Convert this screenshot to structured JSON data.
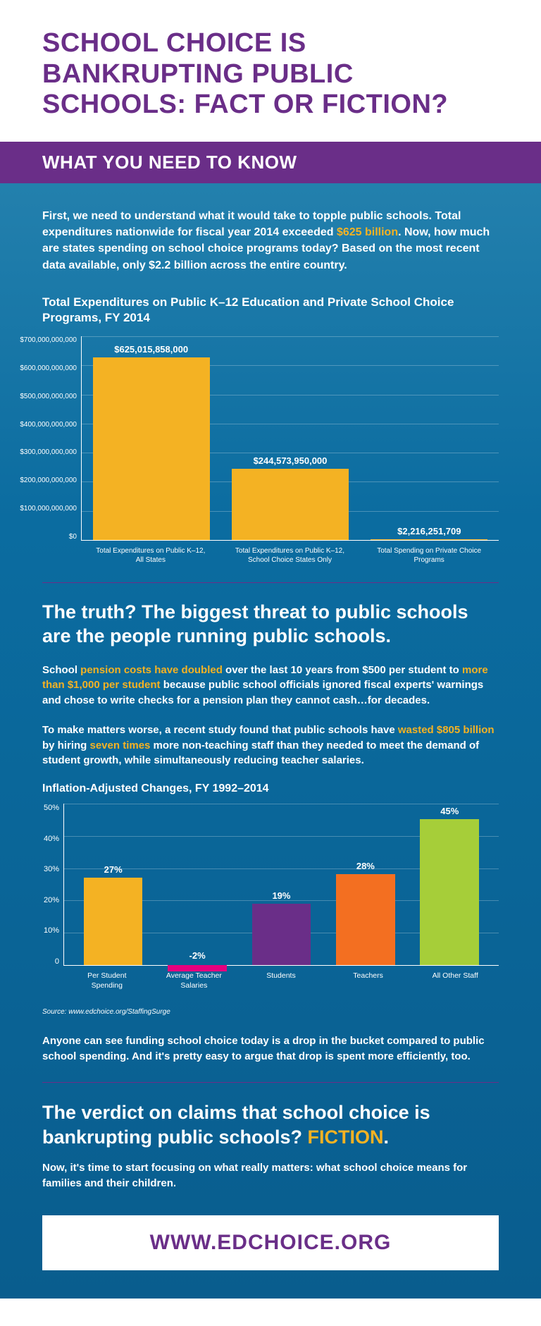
{
  "title": "SCHOOL CHOICE IS BANKRUPTING PUBLIC SCHOOLS: FACT OR FICTION?",
  "subtitle": "WHAT YOU NEED TO KNOW",
  "colors": {
    "purple": "#6a2e88",
    "blue_top": "#2380ad",
    "blue_bottom": "#095d8e",
    "yellow": "#f4b223",
    "magenta": "#e6007e",
    "bar_purple": "#6a2e88",
    "orange": "#f36f21",
    "green": "#a6ce39"
  },
  "intro": {
    "p1a": "First, we need to understand what it would take to topple public schools. Total expenditures nationwide for fiscal year 2014 exceeded ",
    "p1hl": "$625 billion",
    "p1b": ". Now, how much are states spending on school choice programs today? Based on the most recent data available, only $2.2 billion across the entire country."
  },
  "chart1": {
    "title": "Total Expenditures on Public K–12 Education and Private School Choice Programs, FY 2014",
    "ylim": 700000000000,
    "yticks": [
      "$700,000,000,000",
      "$600,000,000,000",
      "$500,000,000,000",
      "$400,000,000,000",
      "$300,000,000,000",
      "$200,000,000,000",
      "$100,000,000,000",
      "$0"
    ],
    "bars": [
      {
        "label": "Total Expenditures on Public K–12, All States",
        "value_label": "$625,015,858,000",
        "value": 625015858000,
        "color": "#f4b223"
      },
      {
        "label": "Total Expenditures on Public K–12, School Choice States Only",
        "value_label": "$244,573,950,000",
        "value": 244573950000,
        "color": "#f4b223"
      },
      {
        "label": "Total Spending on Private Choice Programs",
        "value_label": "$2,216,251,709",
        "value": 2216251709,
        "color": "#f4b223"
      }
    ]
  },
  "section2": {
    "heading": "The truth? The biggest threat to public schools are the people running public schools.",
    "p1a": "School ",
    "p1hl1": "pension costs have doubled",
    "p1b": " over the last 10 years from $500 per student to ",
    "p1hl2": "more than $1,000 per student",
    "p1c": " because public school officials ignored fiscal experts' warnings and chose to write checks for a pension plan they cannot cash…for decades.",
    "p2a": "To make matters worse, a recent study found that public schools have ",
    "p2hl1": "wasted $805 billion",
    "p2b": " by hiring ",
    "p2hl2": "seven times",
    "p2c": " more non-teaching staff than they needed to meet the demand of student growth, while simultaneously reducing teacher salaries."
  },
  "chart2": {
    "title": "Inflation-Adjusted Changes, FY 1992–2014",
    "ylim": 50,
    "yticks": [
      "50%",
      "40%",
      "30%",
      "20%",
      "10%",
      "0"
    ],
    "bars": [
      {
        "label": "Per Student Spending",
        "value_label": "27%",
        "value": 27,
        "color": "#f4b223"
      },
      {
        "label": "Average Teacher Salaries",
        "value_label": "-2%",
        "value": -2,
        "color": "#e6007e"
      },
      {
        "label": "Students",
        "value_label": "19%",
        "value": 19,
        "color": "#6a2e88"
      },
      {
        "label": "Teachers",
        "value_label": "28%",
        "value": 28,
        "color": "#f36f21"
      },
      {
        "label": "All Other Staff",
        "value_label": "45%",
        "value": 45,
        "color": "#a6ce39"
      }
    ],
    "source": "Source: www.edchoice.org/StaffingSurge"
  },
  "closing1": "Anyone can see funding school choice today is a drop in the bucket compared to public school spending. And it's pretty easy to argue that drop is spent more efficiently, too.",
  "verdict": {
    "text": "The verdict on claims that school choice is bankrupting public schools? ",
    "fiction": "FICTION",
    "period": "."
  },
  "closing2": "Now, it's time to start focusing on what really matters: what school choice means for families and their children.",
  "url": "WWW.EDCHOICE.ORG"
}
